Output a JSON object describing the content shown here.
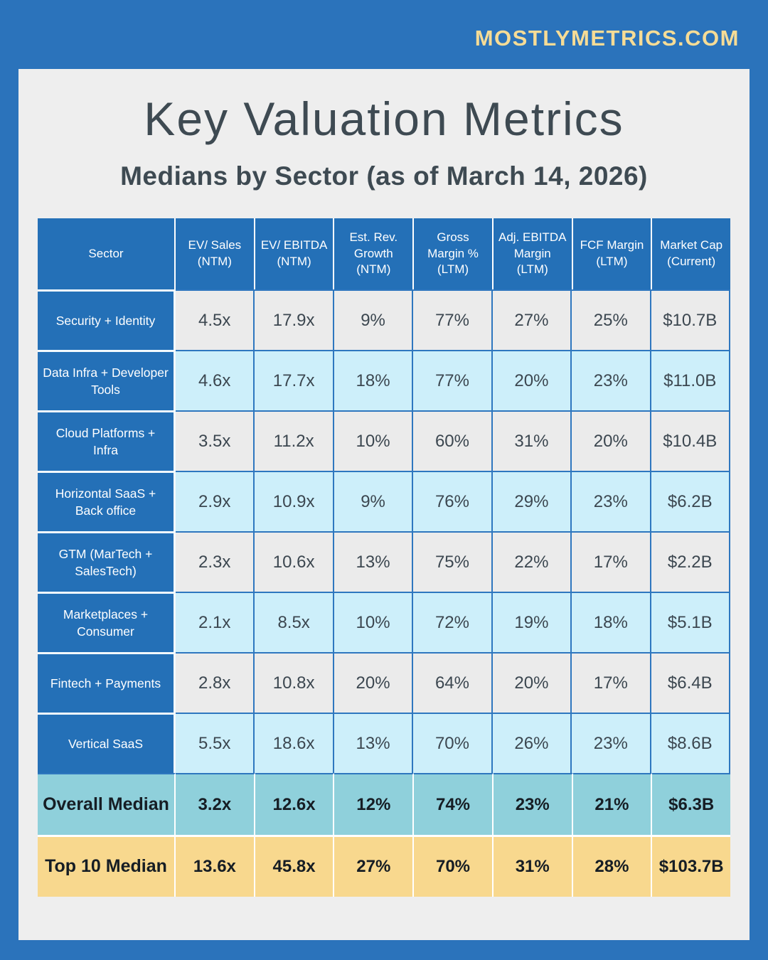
{
  "site": {
    "brand": "MOSTLYMETRICS.COM"
  },
  "header": {
    "title": "Key Valuation Metrics",
    "subtitle": "Medians by Sector (as of March 14, 2026)"
  },
  "colors": {
    "frame_blue": "#2B73BB",
    "panel_gray": "#EEEEEE",
    "header_blue": "#2470B7",
    "cell_border_blue": "#2E77BF",
    "gray_cell": "#EBEBEB",
    "lightblue_cell": "#CDEFFA",
    "teal_row": "#8FD0DB",
    "yellow_row": "#F8D88E",
    "brand_cream": "#F6DC96",
    "title_ink": "#3E4A52",
    "data_ink": "#3C4750",
    "median_ink": "#161D24"
  },
  "chart_data": {
    "type": "table",
    "title": "Key Valuation Metrics",
    "subtitle": "Medians by Sector (as of March 14, 2026)",
    "columns": [
      "Sector",
      "EV/ Sales (NTM)",
      "EV/ EBITDA (NTM)",
      "Est. Rev. Growth (NTM)",
      "Gross Margin % (LTM)",
      "Adj. EBITDA Margin (LTM)",
      "FCF Margin (LTM)",
      "Market Cap (Current)"
    ],
    "rows": [
      {
        "sector": "Security + Identity",
        "values": [
          "4.5x",
          "17.9x",
          "9%",
          "77%",
          "27%",
          "25%",
          "$10.7B"
        ],
        "row_style": "plain"
      },
      {
        "sector": "Data Infra + Developer Tools",
        "values": [
          "4.6x",
          "17.7x",
          "18%",
          "77%",
          "20%",
          "23%",
          "$11.0B"
        ],
        "row_style": "alt"
      },
      {
        "sector": "Cloud Platforms + Infra",
        "values": [
          "3.5x",
          "11.2x",
          "10%",
          "60%",
          "31%",
          "20%",
          "$10.4B"
        ],
        "row_style": "plain"
      },
      {
        "sector": "Horizontal SaaS + Back office",
        "values": [
          "2.9x",
          "10.9x",
          "9%",
          "76%",
          "29%",
          "23%",
          "$6.2B"
        ],
        "row_style": "alt"
      },
      {
        "sector": "GTM (MarTech + SalesTech)",
        "values": [
          "2.3x",
          "10.6x",
          "13%",
          "75%",
          "22%",
          "17%",
          "$2.2B"
        ],
        "row_style": "plain"
      },
      {
        "sector": "Marketplaces + Consumer",
        "values": [
          "2.1x",
          "8.5x",
          "10%",
          "72%",
          "19%",
          "18%",
          "$5.1B"
        ],
        "row_style": "alt"
      },
      {
        "sector": "Fintech + Payments",
        "values": [
          "2.8x",
          "10.8x",
          "20%",
          "64%",
          "20%",
          "17%",
          "$6.4B"
        ],
        "row_style": "plain"
      },
      {
        "sector": "Vertical SaaS",
        "values": [
          "5.5x",
          "18.6x",
          "13%",
          "70%",
          "26%",
          "23%",
          "$8.6B"
        ],
        "row_style": "alt"
      },
      {
        "sector": "Overall Median",
        "values": [
          "3.2x",
          "12.6x",
          "12%",
          "74%",
          "23%",
          "21%",
          "$6.3B"
        ],
        "row_style": "summary-teal"
      },
      {
        "sector": "Top 10 Median",
        "values": [
          "13.6x",
          "45.8x",
          "27%",
          "70%",
          "31%",
          "28%",
          "$103.7B"
        ],
        "row_style": "summary-yellow"
      }
    ]
  }
}
